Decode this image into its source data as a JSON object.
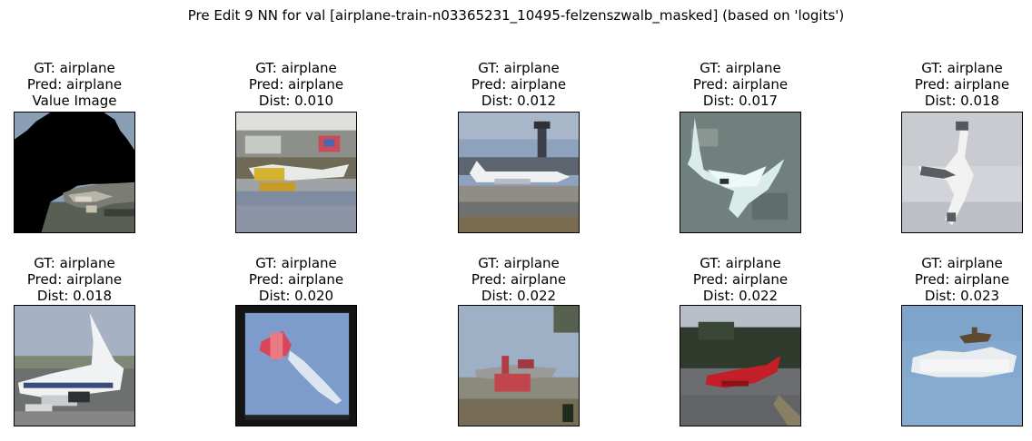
{
  "figure": {
    "title": "Pre Edit 9 NN for val [airplane-train-n03365231_10495-felzenszwalb_masked] (based on 'logits')"
  },
  "panels": [
    {
      "gt": "GT: airplane",
      "pred": "Pred: airplane",
      "info": "Value Image",
      "scene": "masked-query"
    },
    {
      "gt": "GT: airplane",
      "pred": "Pred: airplane",
      "info": "Dist: 0.010",
      "scene": "seaplane-house"
    },
    {
      "gt": "GT: airplane",
      "pred": "Pred: airplane",
      "info": "Dist: 0.012",
      "scene": "jet-airport"
    },
    {
      "gt": "GT: airplane",
      "pred": "Pred: airplane",
      "info": "Dist: 0.017",
      "scene": "seaplane-water"
    },
    {
      "gt": "GT: airplane",
      "pred": "Pred: airplane",
      "info": "Dist: 0.018",
      "scene": "plane-sky-diagonal"
    },
    {
      "gt": "GT: airplane",
      "pred": "Pred: airplane",
      "info": "Dist: 0.018",
      "scene": "airliner-tarmac"
    },
    {
      "gt": "GT: airplane",
      "pred": "Pred: airplane",
      "info": "Dist: 0.020",
      "scene": "stunt-plane-framed"
    },
    {
      "gt": "GT: airplane",
      "pred": "Pred: airplane",
      "info": "Dist: 0.022",
      "scene": "red-plane-trees"
    },
    {
      "gt": "GT: airplane",
      "pred": "Pred: airplane",
      "info": "Dist: 0.022",
      "scene": "red-jet-runway"
    },
    {
      "gt": "GT: airplane",
      "pred": "Pred: airplane",
      "info": "Dist: 0.023",
      "scene": "small-plane-cloud"
    }
  ]
}
